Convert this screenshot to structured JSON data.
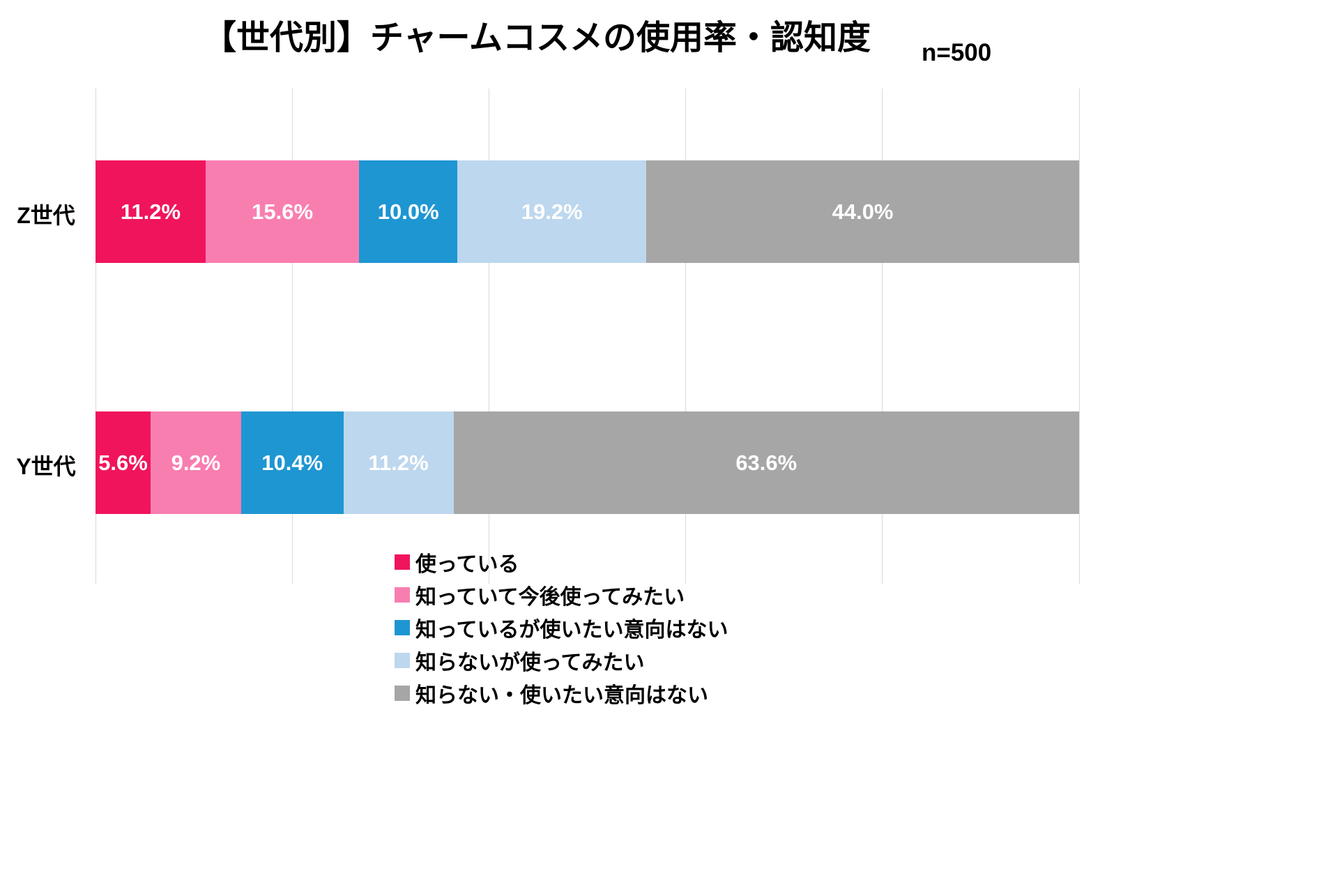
{
  "title": "【世代別】チャームコスメの使用率・認知度",
  "sample_size_label": "n=500",
  "colors": {
    "background": "#ffffff",
    "gridline": "#d9d9d9",
    "value_label_text": "#ffffff"
  },
  "chart_data": {
    "type": "bar",
    "orientation": "horizontal",
    "stacked": true,
    "grid": true,
    "gridlines_every": 20,
    "xlim": [
      0,
      100
    ],
    "legend_position": "bottom-left",
    "categories": [
      "Z世代",
      "Y世代"
    ],
    "series": [
      {
        "name": "使っている",
        "color": "#f0145c",
        "values": [
          11.2,
          5.6
        ]
      },
      {
        "name": "知っていて今後使ってみたい",
        "color": "#f97eb0",
        "values": [
          15.6,
          9.2
        ]
      },
      {
        "name": "知っているが使いたい意向はない",
        "color": "#1e96d2",
        "values": [
          10.0,
          10.4
        ]
      },
      {
        "name": "知らないが使ってみたい",
        "color": "#bdd7ee",
        "values": [
          19.2,
          11.2
        ]
      },
      {
        "name": "知らない・使いたい意向はない",
        "color": "#a6a6a6",
        "values": [
          44.0,
          63.6
        ]
      }
    ],
    "value_labels": [
      [
        "11.2%",
        "15.6%",
        "10.0%",
        "19.2%",
        "44.0%"
      ],
      [
        "5.6%",
        "9.2%",
        "10.4%",
        "11.2%",
        "63.6%"
      ]
    ]
  }
}
